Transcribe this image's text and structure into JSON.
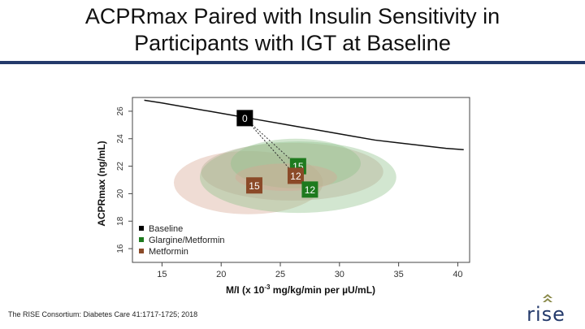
{
  "slide": {
    "title_line1": "ACPRmax Paired with Insulin Sensitivity in",
    "title_line2": "Participants with IGT at Baseline",
    "citation": "The RISE Consortium: Diabetes Care 41:1717-1725; 2018",
    "logo_text": "rise",
    "accent_color": "#243a6b"
  },
  "chart_data": {
    "type": "scatter",
    "title": "",
    "xlabel_prefix": "M/I (x 10",
    "xlabel_sup": "-3",
    "xlabel_suffix": " mg/kg/min per µU/mL)",
    "ylabel": "ACPRmax (ng/mL)",
    "xlim": [
      12.5,
      41
    ],
    "ylim": [
      15,
      27
    ],
    "xticks": [
      15,
      20,
      25,
      30,
      35,
      40
    ],
    "yticks": [
      16,
      18,
      20,
      22,
      24,
      26
    ],
    "colors": {
      "baseline": "#000000",
      "glargine": "#1e7a1e",
      "metformin": "#8b4a28"
    },
    "legend": [
      {
        "label": "Baseline",
        "color": "#000000"
      },
      {
        "label": "Glargine/Metformin",
        "color": "#1e7a1e"
      },
      {
        "label": "Metformin",
        "color": "#8b4a28"
      }
    ],
    "curve": {
      "label": "reference curve",
      "x": [
        13.5,
        15,
        17,
        19,
        21,
        23,
        25,
        27,
        29,
        31,
        33,
        35,
        37,
        39,
        40.5
      ],
      "y": [
        26.8,
        26.6,
        26.3,
        26.0,
        25.7,
        25.4,
        25.1,
        24.8,
        24.5,
        24.2,
        23.9,
        23.7,
        23.5,
        23.3,
        23.2
      ]
    },
    "points": [
      {
        "label": "0",
        "group": "baseline",
        "x": 22,
        "y": 25.5
      },
      {
        "label": "15",
        "group": "glargine",
        "x": 26.5,
        "y": 22.0
      },
      {
        "label": "12",
        "group": "metformin",
        "x": 26.3,
        "y": 21.3
      },
      {
        "label": "15",
        "group": "metformin",
        "x": 22.8,
        "y": 20.6
      },
      {
        "label": "12",
        "group": "glargine",
        "x": 27.5,
        "y": 20.3
      }
    ],
    "ellipses": [
      {
        "group": "metformin",
        "cx": 22.3,
        "cy": 20.8,
        "rx": 6.3,
        "ry": 2.3
      },
      {
        "group": "glargine",
        "cx": 26.5,
        "cy": 21.2,
        "rx": 8.3,
        "ry": 2.6
      },
      {
        "group": "baseline",
        "cx": 26.0,
        "cy": 21.6,
        "rx": 7.7,
        "ry": 2.1
      },
      {
        "group": "glargine",
        "cx": 26.3,
        "cy": 22.2,
        "rx": 5.5,
        "ry": 1.8
      },
      {
        "group": "metformin",
        "cx": 25.5,
        "cy": 21.2,
        "rx": 4.3,
        "ry": 1.0
      }
    ],
    "arrows": [
      {
        "from_x": 22,
        "from_y": 25.5,
        "to_x": 26.5,
        "to_y": 22.0
      },
      {
        "from_x": 22,
        "from_y": 25.5,
        "to_x": 26.3,
        "to_y": 21.3
      }
    ]
  }
}
